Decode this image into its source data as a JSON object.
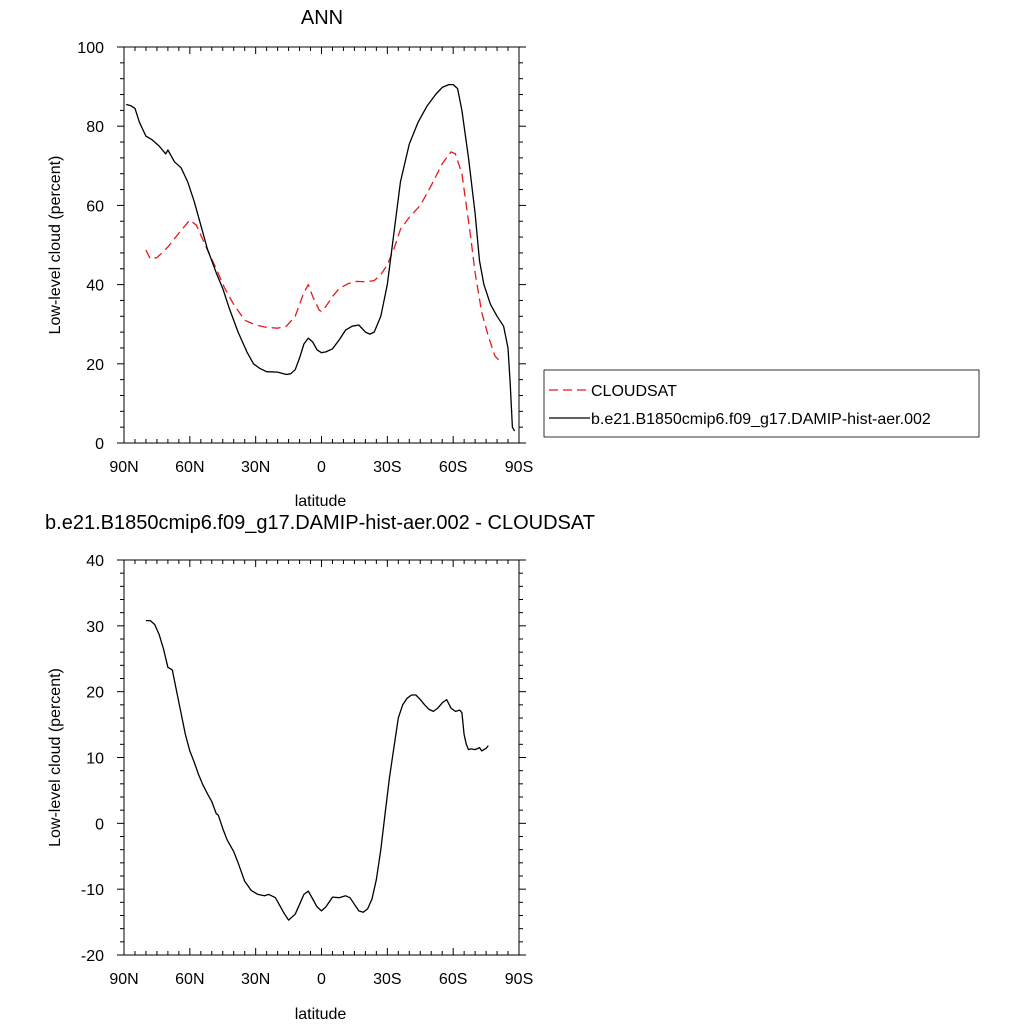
{
  "chart_data": [
    {
      "type": "line",
      "title": "ANN",
      "xlabel": "latitude",
      "ylabel": "Low-level cloud (percent)",
      "xlim": [
        90,
        -90
      ],
      "ylim": [
        0,
        100
      ],
      "x_ticks": [
        {
          "value": 90,
          "label": "90N"
        },
        {
          "value": 60,
          "label": "60N"
        },
        {
          "value": 30,
          "label": "30N"
        },
        {
          "value": 0,
          "label": "0"
        },
        {
          "value": -30,
          "label": "30S"
        },
        {
          "value": -60,
          "label": "60S"
        },
        {
          "value": -90,
          "label": "90S"
        }
      ],
      "y_ticks": [
        0,
        20,
        40,
        60,
        80,
        100
      ],
      "legend_placement": "right",
      "series": [
        {
          "name": "CLOUDSAT",
          "color": "#e8191c",
          "dash": "dashed",
          "points": [
            [
              80,
              48.7
            ],
            [
              78,
              46.5
            ],
            [
              75,
              46.8
            ],
            [
              70,
              49.5
            ],
            [
              65,
              53
            ],
            [
              60,
              56.3
            ],
            [
              57,
              55
            ],
            [
              53,
              50
            ],
            [
              48,
              44
            ],
            [
              44,
              39
            ],
            [
              40,
              35
            ],
            [
              35,
              31
            ],
            [
              30,
              29.8
            ],
            [
              25,
              29.2
            ],
            [
              20,
              29
            ],
            [
              16,
              29.5
            ],
            [
              12,
              32
            ],
            [
              8,
              38
            ],
            [
              6,
              40
            ],
            [
              4,
              37
            ],
            [
              1,
              33.5
            ],
            [
              0,
              33.2
            ],
            [
              -2,
              34.5
            ],
            [
              -5,
              37
            ],
            [
              -8,
              39
            ],
            [
              -12,
              40.2
            ],
            [
              -16,
              40.8
            ],
            [
              -20,
              40.7
            ],
            [
              -24,
              41
            ],
            [
              -27,
              42.5
            ],
            [
              -30,
              45
            ],
            [
              -33,
              49
            ],
            [
              -36,
              54
            ],
            [
              -40,
              57
            ],
            [
              -45,
              60
            ],
            [
              -50,
              65
            ],
            [
              -55,
              70.5
            ],
            [
              -59,
              73.5
            ],
            [
              -61,
              73
            ],
            [
              -64,
              68
            ],
            [
              -66,
              60
            ],
            [
              -68,
              52
            ],
            [
              -70,
              43
            ],
            [
              -73,
              33
            ],
            [
              -76,
              27
            ],
            [
              -79,
              22
            ],
            [
              -81,
              20.8
            ]
          ]
        },
        {
          "name": "b.e21.B1850cmip6.f09_g17.DAMIP-hist-aer.002",
          "color": "#000000",
          "dash": "solid",
          "points": [
            [
              89,
              85.5
            ],
            [
              87,
              85.2
            ],
            [
              85,
              84.5
            ],
            [
              83,
              81
            ],
            [
              80,
              77.5
            ],
            [
              77,
              76.5
            ],
            [
              74,
              75
            ],
            [
              71,
              73
            ],
            [
              70,
              74
            ],
            [
              67,
              71
            ],
            [
              64,
              69.5
            ],
            [
              61,
              66
            ],
            [
              58,
              61
            ],
            [
              55,
              55
            ],
            [
              52,
              49
            ],
            [
              48,
              43
            ],
            [
              45,
              39
            ],
            [
              42,
              34
            ],
            [
              38,
              28
            ],
            [
              34,
              23
            ],
            [
              31,
              20
            ],
            [
              28,
              18.8
            ],
            [
              25,
              18
            ],
            [
              20,
              17.9
            ],
            [
              16,
              17.3
            ],
            [
              14,
              17.5
            ],
            [
              12,
              18.5
            ],
            [
              10,
              21.5
            ],
            [
              8,
              25
            ],
            [
              6,
              26.5
            ],
            [
              4,
              25.5
            ],
            [
              2,
              23.5
            ],
            [
              0,
              22.8
            ],
            [
              -2,
              23
            ],
            [
              -5,
              23.8
            ],
            [
              -8,
              26
            ],
            [
              -11,
              28.5
            ],
            [
              -14,
              29.5
            ],
            [
              -17,
              29.8
            ],
            [
              -20,
              28
            ],
            [
              -22,
              27.5
            ],
            [
              -24,
              28
            ],
            [
              -27,
              32
            ],
            [
              -30,
              40
            ],
            [
              -33,
              53
            ],
            [
              -36,
              66
            ],
            [
              -40,
              75.5
            ],
            [
              -44,
              81
            ],
            [
              -48,
              85
            ],
            [
              -52,
              88
            ],
            [
              -55,
              89.8
            ],
            [
              -58,
              90.5
            ],
            [
              -60,
              90.5
            ],
            [
              -62,
              89.5
            ],
            [
              -64,
              84
            ],
            [
              -67,
              72
            ],
            [
              -70,
              58
            ],
            [
              -72,
              46
            ],
            [
              -74,
              40
            ],
            [
              -77,
              35
            ],
            [
              -80,
              32
            ],
            [
              -83,
              29.5
            ],
            [
              -85,
              24
            ],
            [
              -86,
              15
            ],
            [
              -87,
              4
            ],
            [
              -88,
              3
            ]
          ]
        }
      ]
    },
    {
      "type": "line",
      "title": "b.e21.B1850cmip6.f09_g17.DAMIP-hist-aer.002 - CLOUDSAT",
      "xlabel": "latitude",
      "ylabel": "Low-level cloud (percent)",
      "xlim": [
        90,
        -90
      ],
      "ylim": [
        -20,
        40
      ],
      "x_ticks": [
        {
          "value": 90,
          "label": "90N"
        },
        {
          "value": 60,
          "label": "60N"
        },
        {
          "value": 30,
          "label": "30N"
        },
        {
          "value": 0,
          "label": "0"
        },
        {
          "value": -30,
          "label": "30S"
        },
        {
          "value": -60,
          "label": "60S"
        },
        {
          "value": -90,
          "label": "90S"
        }
      ],
      "y_ticks": [
        -20,
        -10,
        0,
        10,
        20,
        30,
        40
      ],
      "series": [
        {
          "color": "#000000",
          "dash": "solid",
          "points": [
            [
              80,
              30.8
            ],
            [
              78,
              30.8
            ],
            [
              76,
              30.2
            ],
            [
              74,
              28.7
            ],
            [
              72,
              26.5
            ],
            [
              70,
              23.7
            ],
            [
              68,
              23.3
            ],
            [
              66,
              20
            ],
            [
              64,
              16.7
            ],
            [
              62,
              13.5
            ],
            [
              60,
              11
            ],
            [
              58,
              9.3
            ],
            [
              56,
              7.4
            ],
            [
              54,
              5.8
            ],
            [
              52,
              4.5
            ],
            [
              50,
              3.3
            ],
            [
              48,
              1.5
            ],
            [
              47,
              1.2
            ],
            [
              45,
              -0.8
            ],
            [
              43,
              -2.5
            ],
            [
              40,
              -4.3
            ],
            [
              38,
              -6
            ],
            [
              35,
              -8.8
            ],
            [
              32,
              -10.2
            ],
            [
              29,
              -10.8
            ],
            [
              26,
              -11
            ],
            [
              24,
              -10.8
            ],
            [
              21,
              -11.3
            ],
            [
              19,
              -12.5
            ],
            [
              17,
              -13.7
            ],
            [
              15,
              -14.7
            ],
            [
              12,
              -13.8
            ],
            [
              10,
              -12.3
            ],
            [
              8,
              -10.8
            ],
            [
              6,
              -10.3
            ],
            [
              4,
              -11.5
            ],
            [
              2,
              -12.7
            ],
            [
              0,
              -13.3
            ],
            [
              -2,
              -12.7
            ],
            [
              -5,
              -11.2
            ],
            [
              -8,
              -11.3
            ],
            [
              -11,
              -11
            ],
            [
              -13,
              -11.3
            ],
            [
              -15,
              -12.3
            ],
            [
              -17,
              -13.3
            ],
            [
              -19,
              -13.5
            ],
            [
              -21,
              -13
            ],
            [
              -23,
              -11.5
            ],
            [
              -25,
              -8.5
            ],
            [
              -27,
              -4
            ],
            [
              -29,
              1.5
            ],
            [
              -31,
              7
            ],
            [
              -33,
              11.5
            ],
            [
              -35,
              16
            ],
            [
              -37,
              18
            ],
            [
              -39,
              19
            ],
            [
              -41,
              19.5
            ],
            [
              -43,
              19.5
            ],
            [
              -45,
              18.8
            ],
            [
              -47,
              18
            ],
            [
              -49,
              17.3
            ],
            [
              -51,
              17
            ],
            [
              -53,
              17.5
            ],
            [
              -55,
              18.3
            ],
            [
              -57,
              18.8
            ],
            [
              -59,
              17.5
            ],
            [
              -61,
              17
            ],
            [
              -63,
              17.2
            ],
            [
              -64,
              16.8
            ],
            [
              -65,
              13.5
            ],
            [
              -66,
              12
            ],
            [
              -67,
              11.2
            ],
            [
              -68,
              11.3
            ],
            [
              -70,
              11.2
            ],
            [
              -72,
              11.5
            ],
            [
              -73,
              11
            ],
            [
              -75,
              11.4
            ],
            [
              -76,
              11.8
            ]
          ]
        }
      ]
    }
  ]
}
